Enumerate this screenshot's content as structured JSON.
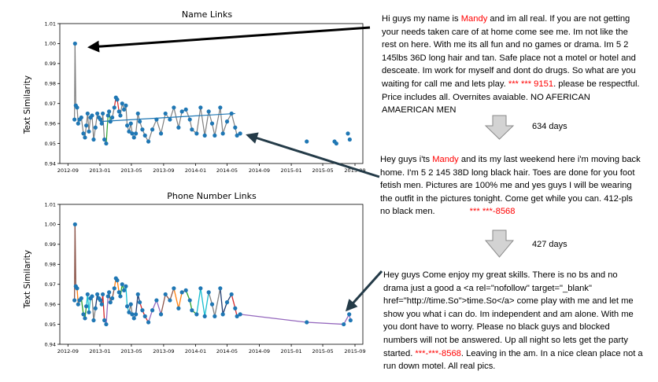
{
  "chart_data": [
    {
      "type": "line",
      "title": "Name Links",
      "ylabel": "Text Similarity",
      "ylim": [
        0.94,
        1.01
      ],
      "yticks": [
        "0.94",
        "0.95",
        "0.96",
        "0.97",
        "0.98",
        "0.99",
        "1.00",
        "1.01"
      ],
      "xticks": [
        "2012-09",
        "2013-01",
        "2013-05",
        "2013-09",
        "2014-01",
        "2014-05",
        "2014-09",
        "2015-01",
        "2015-05",
        "2015-09"
      ],
      "xlim": [
        "2012-08-01",
        "2015-10-01"
      ],
      "points": [
        [
          "2012-09-26",
          0.962
        ],
        [
          "2012-09-28",
          1.0
        ],
        [
          "2012-10-01",
          0.969
        ],
        [
          "2012-10-06",
          0.968
        ],
        [
          "2012-10-10",
          0.96
        ],
        [
          "2012-10-15",
          0.962
        ],
        [
          "2012-10-22",
          0.963
        ],
        [
          "2012-10-30",
          0.955
        ],
        [
          "2012-11-05",
          0.953
        ],
        [
          "2012-11-10",
          0.959
        ],
        [
          "2012-11-15",
          0.965
        ],
        [
          "2012-11-20",
          0.956
        ],
        [
          "2012-11-26",
          0.963
        ],
        [
          "2012-12-02",
          0.964
        ],
        [
          "2012-12-08",
          0.952
        ],
        [
          "2012-12-15",
          0.958
        ],
        [
          "2012-12-22",
          0.965
        ],
        [
          "2012-12-28",
          0.963
        ],
        [
          "2013-01-03",
          0.962
        ],
        [
          "2013-01-08",
          0.96
        ],
        [
          "2013-01-12",
          0.965
        ],
        [
          "2013-01-18",
          0.952
        ],
        [
          "2013-01-25",
          0.95
        ],
        [
          "2013-02-01",
          0.964
        ],
        [
          "2013-02-05",
          0.966
        ],
        [
          "2013-02-10",
          0.961
        ],
        [
          "2013-02-17",
          0.963
        ],
        [
          "2013-02-25",
          0.968
        ],
        [
          "2013-03-03",
          0.973
        ],
        [
          "2013-03-08",
          0.972
        ],
        [
          "2013-03-15",
          0.966
        ],
        [
          "2013-03-20",
          0.964
        ],
        [
          "2013-03-27",
          0.97
        ],
        [
          "2013-04-03",
          0.967
        ],
        [
          "2013-04-10",
          0.969
        ],
        [
          "2013-04-15",
          0.959
        ],
        [
          "2013-04-22",
          0.956
        ],
        [
          "2013-04-29",
          0.96
        ],
        [
          "2013-05-04",
          0.955
        ],
        [
          "2013-05-11",
          0.953
        ],
        [
          "2013-05-18",
          0.955
        ],
        [
          "2013-05-26",
          0.965
        ],
        [
          "2013-06-02",
          0.961
        ],
        [
          "2013-06-12",
          0.957
        ],
        [
          "2013-06-22",
          0.954
        ],
        [
          "2013-07-05",
          0.951
        ],
        [
          "2013-07-20",
          0.957
        ],
        [
          "2013-08-05",
          0.962
        ],
        [
          "2013-08-22",
          0.955
        ],
        [
          "2013-09-08",
          0.965
        ],
        [
          "2013-09-25",
          0.962
        ],
        [
          "2013-10-10",
          0.968
        ],
        [
          "2013-10-28",
          0.958
        ],
        [
          "2013-11-10",
          0.966
        ],
        [
          "2013-11-25",
          0.967
        ],
        [
          "2013-12-10",
          0.962
        ],
        [
          "2013-12-18",
          0.957
        ],
        [
          "2014-01-05",
          0.955
        ],
        [
          "2014-01-20",
          0.968
        ],
        [
          "2014-02-05",
          0.954
        ],
        [
          "2014-02-20",
          0.966
        ],
        [
          "2014-03-05",
          0.96
        ],
        [
          "2014-03-15",
          0.954
        ],
        [
          "2014-04-05",
          0.968
        ],
        [
          "2014-04-15",
          0.955
        ],
        [
          "2014-05-01",
          0.961
        ],
        [
          "2014-05-18",
          0.965
        ],
        [
          "2014-06-01",
          0.958
        ],
        [
          "2014-06-08",
          0.954
        ],
        [
          "2014-06-20",
          0.955
        ],
        [
          "2015-03-01",
          0.951
        ],
        [
          "2015-06-15",
          0.951
        ],
        [
          "2015-06-22",
          0.95
        ],
        [
          "2015-08-05",
          0.955
        ],
        [
          "2015-08-12",
          0.952
        ]
      ],
      "trend": [
        [
          "2013-01-01",
          0.961
        ],
        [
          "2014-06-01",
          0.965
        ]
      ]
    },
    {
      "type": "line",
      "title": "Phone Number Links",
      "ylabel": "Text Similarity",
      "ylim": [
        0.94,
        1.01
      ],
      "yticks": [
        "0.94",
        "0.95",
        "0.96",
        "0.97",
        "0.98",
        "0.99",
        "1.00",
        "1.01"
      ],
      "xticks": [
        "2012-09",
        "2013-01",
        "2013-05",
        "2013-09",
        "2014-01",
        "2014-05",
        "2014-09",
        "2015-01",
        "2015-05",
        "2015-09"
      ],
      "xlim": [
        "2012-08-01",
        "2015-10-01"
      ],
      "points": [
        [
          "2012-09-26",
          0.962
        ],
        [
          "2012-09-28",
          1.0
        ],
        [
          "2012-10-01",
          0.969
        ],
        [
          "2012-10-06",
          0.968
        ],
        [
          "2012-10-10",
          0.96
        ],
        [
          "2012-10-15",
          0.962
        ],
        [
          "2012-10-22",
          0.963
        ],
        [
          "2012-10-30",
          0.955
        ],
        [
          "2012-11-05",
          0.953
        ],
        [
          "2012-11-10",
          0.959
        ],
        [
          "2012-11-15",
          0.965
        ],
        [
          "2012-11-20",
          0.956
        ],
        [
          "2012-11-26",
          0.963
        ],
        [
          "2012-12-02",
          0.964
        ],
        [
          "2012-12-08",
          0.952
        ],
        [
          "2012-12-15",
          0.958
        ],
        [
          "2012-12-22",
          0.965
        ],
        [
          "2012-12-28",
          0.963
        ],
        [
          "2013-01-03",
          0.962
        ],
        [
          "2013-01-08",
          0.96
        ],
        [
          "2013-01-12",
          0.965
        ],
        [
          "2013-01-18",
          0.952
        ],
        [
          "2013-01-25",
          0.95
        ],
        [
          "2013-02-01",
          0.964
        ],
        [
          "2013-02-05",
          0.966
        ],
        [
          "2013-02-10",
          0.961
        ],
        [
          "2013-02-17",
          0.963
        ],
        [
          "2013-02-25",
          0.968
        ],
        [
          "2013-03-03",
          0.973
        ],
        [
          "2013-03-08",
          0.972
        ],
        [
          "2013-03-15",
          0.966
        ],
        [
          "2013-03-20",
          0.964
        ],
        [
          "2013-03-27",
          0.97
        ],
        [
          "2013-04-03",
          0.967
        ],
        [
          "2013-04-10",
          0.969
        ],
        [
          "2013-04-15",
          0.959
        ],
        [
          "2013-04-22",
          0.956
        ],
        [
          "2013-04-29",
          0.96
        ],
        [
          "2013-05-04",
          0.955
        ],
        [
          "2013-05-11",
          0.953
        ],
        [
          "2013-05-18",
          0.955
        ],
        [
          "2013-05-26",
          0.965
        ],
        [
          "2013-06-02",
          0.961
        ],
        [
          "2013-06-12",
          0.957
        ],
        [
          "2013-06-22",
          0.954
        ],
        [
          "2013-07-05",
          0.951
        ],
        [
          "2013-07-20",
          0.957
        ],
        [
          "2013-08-05",
          0.962
        ],
        [
          "2013-08-22",
          0.955
        ],
        [
          "2013-09-08",
          0.965
        ],
        [
          "2013-09-25",
          0.962
        ],
        [
          "2013-10-10",
          0.968
        ],
        [
          "2013-10-28",
          0.958
        ],
        [
          "2013-11-10",
          0.966
        ],
        [
          "2013-11-25",
          0.967
        ],
        [
          "2013-12-10",
          0.962
        ],
        [
          "2013-12-18",
          0.957
        ],
        [
          "2014-01-05",
          0.955
        ],
        [
          "2014-01-20",
          0.968
        ],
        [
          "2014-02-05",
          0.954
        ],
        [
          "2014-02-20",
          0.966
        ],
        [
          "2014-03-05",
          0.96
        ],
        [
          "2014-03-15",
          0.954
        ],
        [
          "2014-04-05",
          0.968
        ],
        [
          "2014-04-15",
          0.955
        ],
        [
          "2014-05-01",
          0.961
        ],
        [
          "2014-05-18",
          0.965
        ],
        [
          "2014-06-01",
          0.958
        ],
        [
          "2014-06-08",
          0.954
        ],
        [
          "2014-06-20",
          0.955
        ],
        [
          "2015-03-01",
          0.951
        ],
        [
          "2015-07-20",
          0.95
        ],
        [
          "2015-08-10",
          0.955
        ],
        [
          "2015-08-15",
          0.952
        ]
      ],
      "palette": [
        "#8c564b",
        "#ff7f0e",
        "#2ca02c",
        "#17becf",
        "#7f7f7f",
        "#1f3b70",
        "#d62728",
        "#9467bd"
      ],
      "tail_color": "#9467bd",
      "tail_start_index": 69
    }
  ],
  "ads": {
    "ad1": {
      "before_name": "Hi guys my name is ",
      "name": "Mandy",
      "after_name": " and im all real. If you are not getting your needs taken care of at home come see me. Im not like the rest on here. With me its all fun and no games or drama. Im 5 2 145lbs 36D long hair and tan. Safe place not a motel or hotel and desceate. Im work for myself and dont do drugs. So what are you waiting for call me and lets play. ",
      "phone": "*** *** 9151",
      "after_phone": ".  please be respectful. Price includes all. Overnites avaiable.   NO AFERICAN AMAERICAN MEN"
    },
    "gap1": "634 days",
    "ad2": {
      "before_name": "Hey guys i'ts ",
      "name": "Mandy",
      "after_name": " and its my last weekend here i'm moving back home. I'm 5 2 145 38D long black hair. Toes are done for you foot fetish men. Pictures are 100% me and yes guys I will be wearing the outfit in the pictures tonight. Come get while you can. 412-pls no black men.",
      "phone": "*** ***-8568"
    },
    "gap2": "427 days",
    "ad3": {
      "before_phone": "Hey guys  Come enjoy my great skills. There is no bs and no drama just a good a <a rel=\"nofollow\" target=\"_blank\" href=\"http://time.So\">time.So</a> come play with me and let me show you what i can do. Im independent and am alone. With me you dont have to worry. Please no black guys and blocked numbers will not be answered. Up all night so lets get the party started. ",
      "phone": "***-***-8568",
      "after_phone": ". Leaving in the am. In a nice clean place not a run down motel. All real pics."
    }
  }
}
